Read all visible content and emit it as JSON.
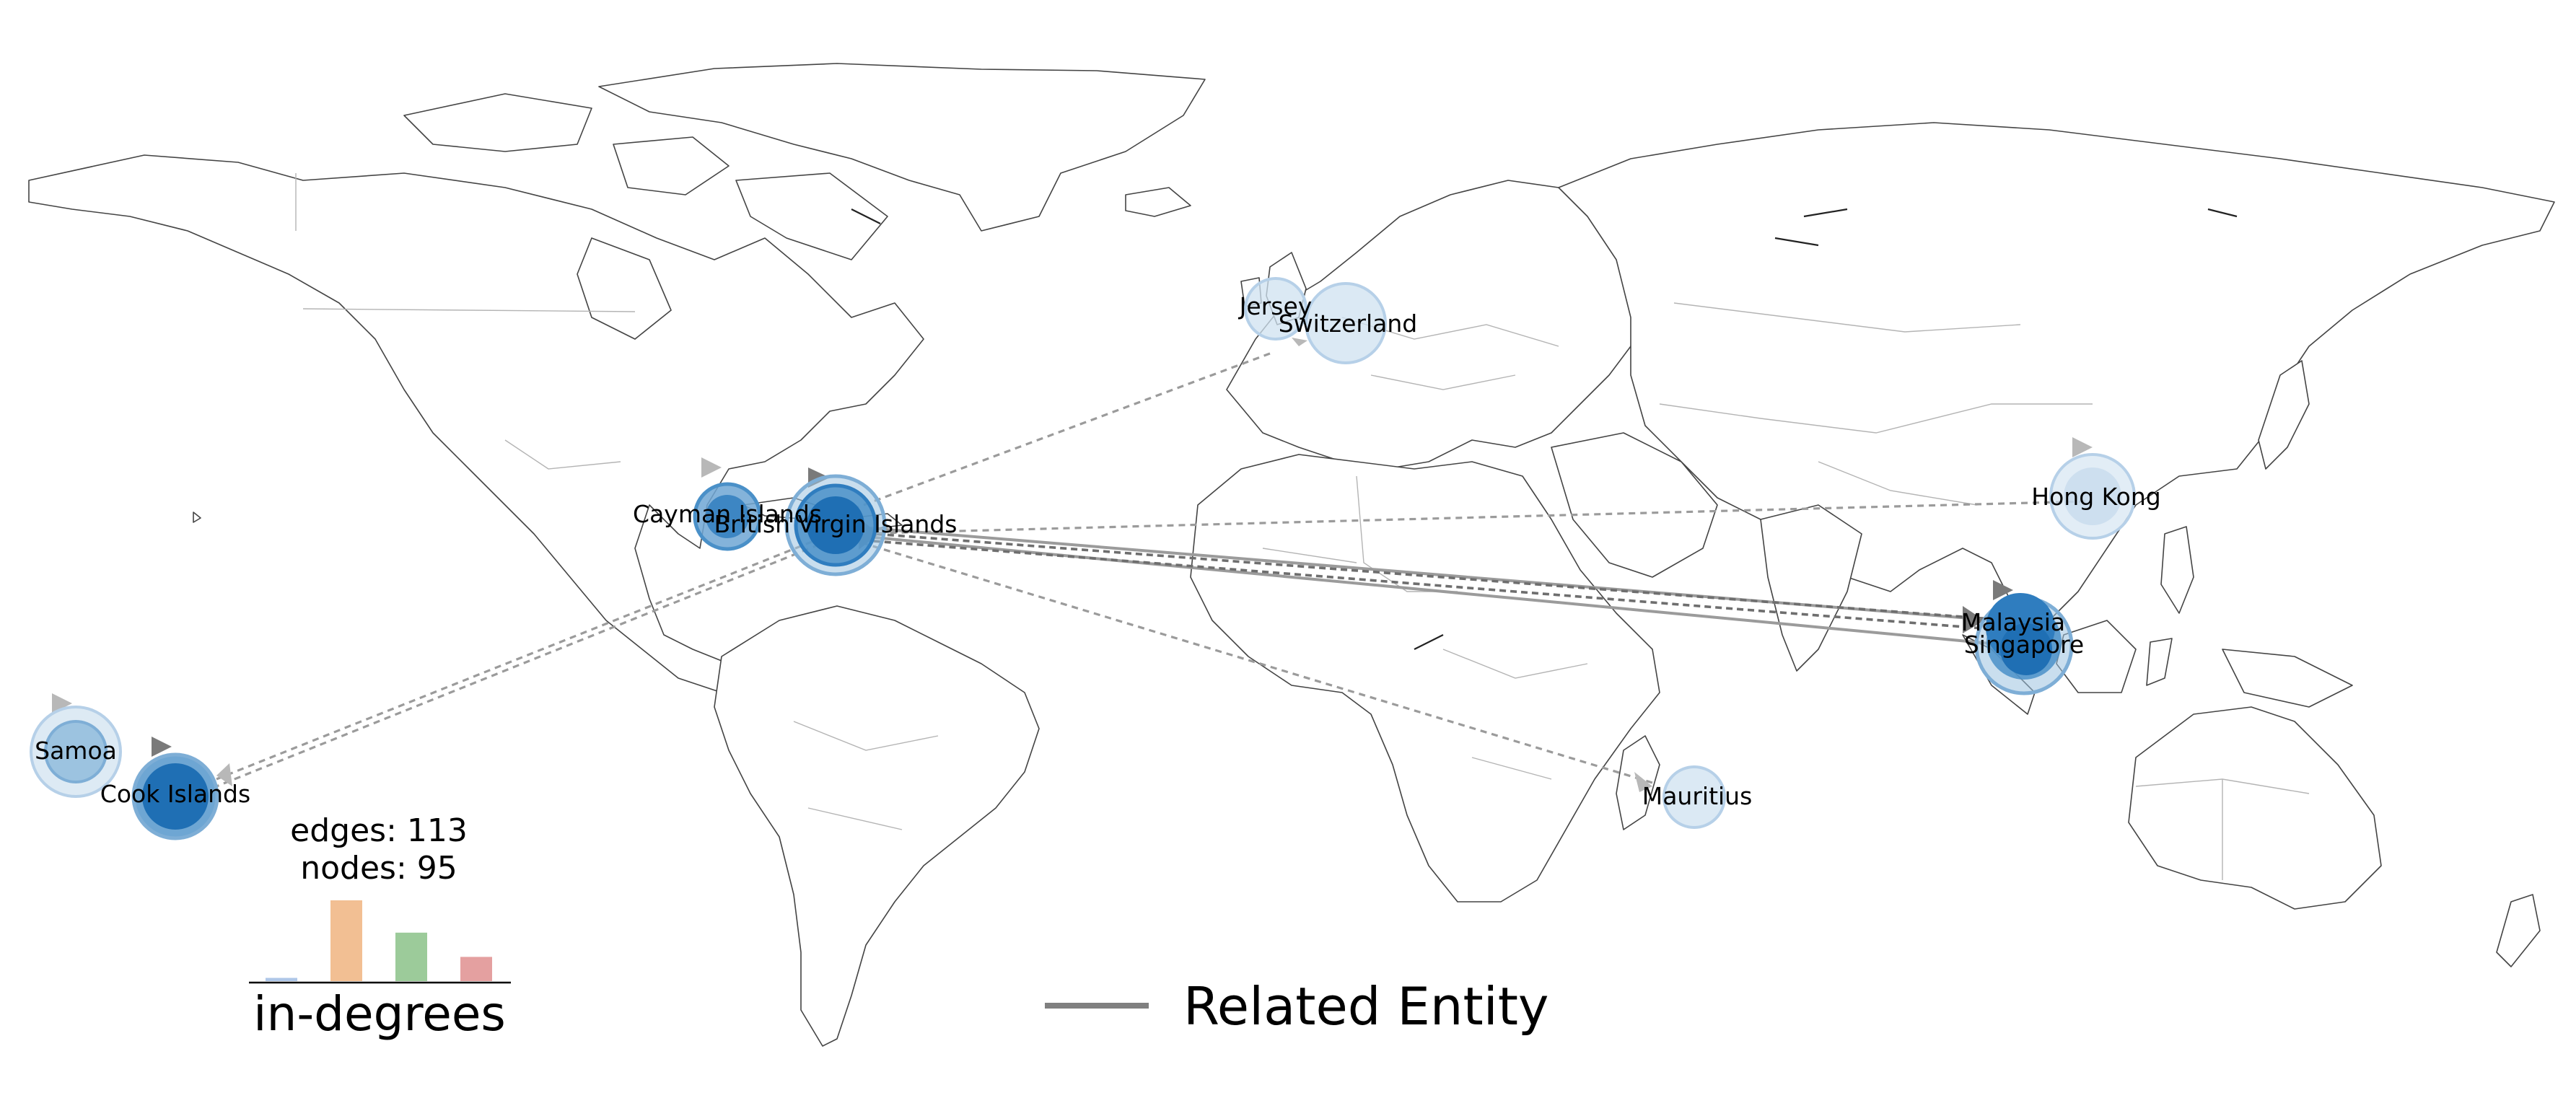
{
  "map": {
    "nodes": [
      {
        "name": "British Virgin Islands",
        "size": "large",
        "shade": "dark"
      },
      {
        "name": "Cayman Islands",
        "size": "small",
        "shade": "medium"
      },
      {
        "name": "Jersey",
        "size": "small",
        "shade": "pale"
      },
      {
        "name": "Switzerland",
        "size": "medium",
        "shade": "pale"
      },
      {
        "name": "Hong Kong",
        "size": "medium",
        "shade": "pale"
      },
      {
        "name": "Malaysia",
        "size": "medium",
        "shade": "dark"
      },
      {
        "name": "Singapore",
        "size": "medium",
        "shade": "dark"
      },
      {
        "name": "Mauritius",
        "size": "small",
        "shade": "pale"
      },
      {
        "name": "Samoa",
        "size": "medium",
        "shade": "light"
      },
      {
        "name": "Cook Islands",
        "size": "medium",
        "shade": "dark"
      }
    ],
    "edges": [
      {
        "from": "Malaysia",
        "to": "British Virgin Islands",
        "style": "solid"
      },
      {
        "from": "Singapore",
        "to": "British Virgin Islands",
        "style": "solid"
      },
      {
        "from": "Malaysia",
        "to": "British Virgin Islands",
        "style": "dashed"
      },
      {
        "from": "British Virgin Islands",
        "to": "Malaysia",
        "style": "dashed"
      },
      {
        "from": "Hong Kong",
        "to": "British Virgin Islands",
        "style": "dashed"
      },
      {
        "from": "Jersey",
        "to": "British Virgin Islands",
        "style": "dashed"
      },
      {
        "from": "Mauritius",
        "to": "British Virgin Islands",
        "style": "dashed"
      },
      {
        "from": "British Virgin Islands",
        "to": "Cook Islands",
        "style": "dashed"
      }
    ],
    "colors": {
      "node_dark": "#1f6fb4",
      "node_medium": "#4a90c8",
      "node_light": "#9cc3e0",
      "node_pale": "#cfe1f0",
      "edge": "#9b9b9b",
      "arrow": "#7a7a7a"
    }
  },
  "stats": {
    "edges_text": "edges: 113",
    "nodes_text": "nodes: 95"
  },
  "histogram": {
    "title": "in-degrees",
    "bars": [
      {
        "relative_height": 0.04,
        "color": "#aec7e8"
      },
      {
        "relative_height": 1.0,
        "color": "#f2bf93"
      },
      {
        "relative_height": 0.6,
        "color": "#9ccb9a"
      },
      {
        "relative_height": 0.3,
        "color": "#e4a0a0"
      }
    ]
  },
  "legend": {
    "label": "Related Entity",
    "line_color": "#808080"
  }
}
